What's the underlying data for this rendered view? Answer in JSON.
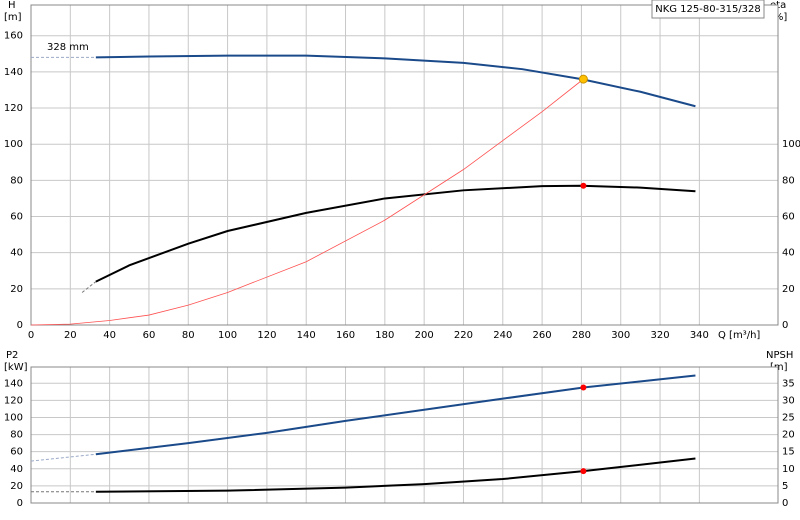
{
  "chart_data": [
    {
      "type": "line",
      "ylabel": "H",
      "yunit": "[m]",
      "y2label": "eta",
      "y2unit": "[%]",
      "xlabel": "Q [m³/h]",
      "title": "NKG 125-80-315/328",
      "annotation": "328 mm",
      "xlim": [
        0,
        380
      ],
      "xticks": [
        0,
        20,
        40,
        60,
        80,
        100,
        120,
        140,
        160,
        180,
        200,
        220,
        240,
        260,
        280,
        300,
        320,
        340
      ],
      "ylim": [
        0,
        177
      ],
      "yticks": [
        0,
        20,
        40,
        60,
        80,
        100,
        120,
        140,
        160
      ],
      "y2lim": [
        0,
        177
      ],
      "y2ticks": [
        0,
        20,
        40,
        60,
        80,
        100
      ],
      "grid": true,
      "series": [
        {
          "color": "#9aa9c8",
          "dashed": true,
          "x": [
            0,
            33
          ],
          "values": [
            148,
            148
          ]
        },
        {
          "color": "#1b4a8a",
          "x": [
            33,
            60,
            100,
            140,
            180,
            220,
            250,
            280,
            310,
            338
          ],
          "values": [
            148,
            148.5,
            149,
            149,
            147.5,
            145,
            141.5,
            136,
            129,
            121
          ]
        },
        {
          "color": "#777777",
          "dashed": true,
          "axis": "y2",
          "x": [
            26,
            33
          ],
          "values": [
            18,
            24
          ]
        },
        {
          "color": "#000000",
          "axis": "y2",
          "x": [
            33,
            50,
            80,
            100,
            140,
            180,
            220,
            260,
            280,
            310,
            338
          ],
          "values": [
            24,
            33,
            45,
            52,
            62,
            70,
            74.5,
            76.8,
            77,
            76,
            74
          ]
        },
        {
          "color": "#ff5050",
          "thin": true,
          "x": [
            0,
            20,
            40,
            60,
            80,
            100,
            140,
            180,
            220,
            260,
            281
          ],
          "values": [
            0,
            0.5,
            2.5,
            5.5,
            11,
            18,
            35,
            58,
            86,
            118,
            136
          ]
        }
      ],
      "points": [
        {
          "x": 281,
          "y": 136,
          "color": "#ffc000"
        },
        {
          "x": 281,
          "y": 77,
          "color": "#ff0000",
          "axis": "y2"
        }
      ]
    },
    {
      "type": "line",
      "ylabel": "P2",
      "yunit": "[kW]",
      "y2label": "NPSH",
      "y2unit": "[m]",
      "xlim": [
        0,
        380
      ],
      "ylim": [
        0,
        159
      ],
      "yticks": [
        0,
        20,
        40,
        60,
        80,
        100,
        120,
        140
      ],
      "y2lim": [
        0,
        39.75
      ],
      "y2ticks": [
        0,
        5,
        10,
        15,
        20,
        25,
        30,
        35
      ],
      "grid": true,
      "series": [
        {
          "color": "#9aa9c8",
          "dashed": true,
          "x": [
            0,
            33
          ],
          "values": [
            49,
            57
          ]
        },
        {
          "color": "#1b4a8a",
          "x": [
            33,
            80,
            120,
            160,
            200,
            240,
            281,
            338
          ],
          "values": [
            57,
            70,
            82,
            96,
            109,
            122,
            135,
            149
          ]
        },
        {
          "color": "#777777",
          "dashed": true,
          "axis": "y2",
          "x": [
            0,
            33
          ],
          "values": [
            3.3,
            3.3
          ]
        },
        {
          "color": "#000000",
          "axis": "y2",
          "x": [
            33,
            100,
            160,
            200,
            240,
            281,
            338
          ],
          "values": [
            3.3,
            3.6,
            4.5,
            5.5,
            7,
            9.3,
            13
          ]
        }
      ],
      "points": [
        {
          "x": 281,
          "y": 135,
          "color": "#ff0000"
        },
        {
          "x": 281,
          "y": 9.3,
          "color": "#ff0000",
          "axis": "y2"
        }
      ]
    }
  ]
}
